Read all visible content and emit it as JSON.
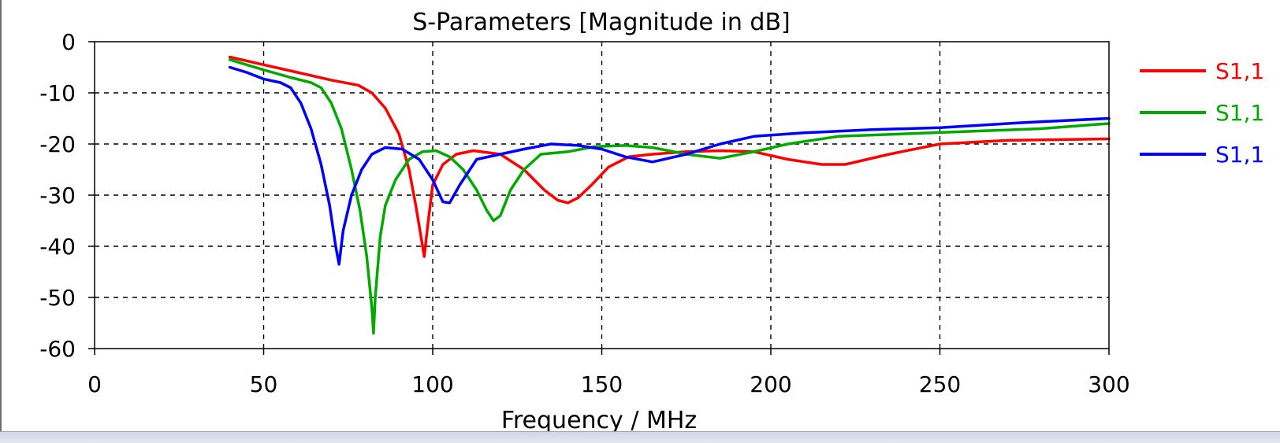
{
  "chart_data": {
    "type": "line",
    "title": "S-Parameters [Magnitude in dB]",
    "xlabel": "Frequency / MHz",
    "ylabel": "",
    "xlim": [
      0,
      300
    ],
    "ylim": [
      -60,
      0
    ],
    "x_ticks": [
      0,
      50,
      100,
      150,
      200,
      250,
      300
    ],
    "y_ticks": [
      0,
      -10,
      -20,
      -30,
      -40,
      -50,
      -60
    ],
    "grid": true,
    "legend_position": "right",
    "series": [
      {
        "name": "S1,1",
        "color": "#ff0000",
        "points": [
          [
            40,
            -3
          ],
          [
            50,
            -4.5
          ],
          [
            60,
            -6
          ],
          [
            70,
            -7.5
          ],
          [
            78,
            -8.5
          ],
          [
            82,
            -10
          ],
          [
            86,
            -13
          ],
          [
            90,
            -18
          ],
          [
            93,
            -25
          ],
          [
            95,
            -32
          ],
          [
            96.5,
            -38
          ],
          [
            97.5,
            -42
          ],
          [
            98.5,
            -36
          ],
          [
            100,
            -28
          ],
          [
            103,
            -24
          ],
          [
            107,
            -22
          ],
          [
            112,
            -21.3
          ],
          [
            120,
            -22
          ],
          [
            127,
            -25
          ],
          [
            133,
            -29
          ],
          [
            137,
            -31
          ],
          [
            140,
            -31.5
          ],
          [
            143,
            -30.5
          ],
          [
            147,
            -28
          ],
          [
            152,
            -24.5
          ],
          [
            158,
            -22.5
          ],
          [
            165,
            -22
          ],
          [
            175,
            -21.5
          ],
          [
            185,
            -21.3
          ],
          [
            195,
            -21.5
          ],
          [
            205,
            -23
          ],
          [
            215,
            -24
          ],
          [
            222,
            -24
          ],
          [
            235,
            -22
          ],
          [
            250,
            -20
          ],
          [
            270,
            -19.3
          ],
          [
            300,
            -19
          ]
        ]
      },
      {
        "name": "S1,1",
        "color": "#00aa00",
        "points": [
          [
            40,
            -3.5
          ],
          [
            50,
            -5.5
          ],
          [
            58,
            -7
          ],
          [
            64,
            -8
          ],
          [
            67,
            -9
          ],
          [
            70,
            -12
          ],
          [
            73,
            -17
          ],
          [
            76,
            -25
          ],
          [
            78.5,
            -33
          ],
          [
            80.5,
            -42
          ],
          [
            82,
            -52
          ],
          [
            82.5,
            -57
          ],
          [
            83,
            -50
          ],
          [
            84.5,
            -38
          ],
          [
            86,
            -32
          ],
          [
            89,
            -27
          ],
          [
            93,
            -23
          ],
          [
            97,
            -21.5
          ],
          [
            101,
            -21.3
          ],
          [
            105,
            -22.5
          ],
          [
            109,
            -25
          ],
          [
            113,
            -29
          ],
          [
            116,
            -33
          ],
          [
            118,
            -35
          ],
          [
            120,
            -34
          ],
          [
            123,
            -29
          ],
          [
            127,
            -25
          ],
          [
            132,
            -22
          ],
          [
            140,
            -21.5
          ],
          [
            148,
            -20.5
          ],
          [
            157,
            -20.3
          ],
          [
            165,
            -20.7
          ],
          [
            175,
            -22
          ],
          [
            185,
            -22.8
          ],
          [
            195,
            -21.5
          ],
          [
            205,
            -20
          ],
          [
            220,
            -18.5
          ],
          [
            240,
            -18
          ],
          [
            260,
            -17.5
          ],
          [
            280,
            -17
          ],
          [
            300,
            -16
          ]
        ]
      },
      {
        "name": "S1,1",
        "color": "#0000ff",
        "points": [
          [
            40,
            -5
          ],
          [
            45,
            -6
          ],
          [
            50,
            -7.3
          ],
          [
            55,
            -8
          ],
          [
            58,
            -9
          ],
          [
            61,
            -12
          ],
          [
            64,
            -17
          ],
          [
            67,
            -24
          ],
          [
            69.5,
            -32
          ],
          [
            71.3,
            -40
          ],
          [
            72.3,
            -43.5
          ],
          [
            73.5,
            -37
          ],
          [
            76,
            -30
          ],
          [
            79,
            -25
          ],
          [
            82,
            -22
          ],
          [
            86,
            -20.7
          ],
          [
            91,
            -21
          ],
          [
            96,
            -23
          ],
          [
            100,
            -27
          ],
          [
            103,
            -31.3
          ],
          [
            105,
            -31.5
          ],
          [
            108,
            -28
          ],
          [
            113,
            -23
          ],
          [
            120,
            -22
          ],
          [
            127,
            -21
          ],
          [
            135,
            -20
          ],
          [
            143,
            -20.3
          ],
          [
            150,
            -21
          ],
          [
            157,
            -22.5
          ],
          [
            165,
            -23.5
          ],
          [
            175,
            -22
          ],
          [
            185,
            -20
          ],
          [
            195,
            -18.5
          ],
          [
            210,
            -17.8
          ],
          [
            230,
            -17.2
          ],
          [
            250,
            -16.8
          ],
          [
            275,
            -15.8
          ],
          [
            300,
            -15
          ]
        ]
      }
    ]
  }
}
